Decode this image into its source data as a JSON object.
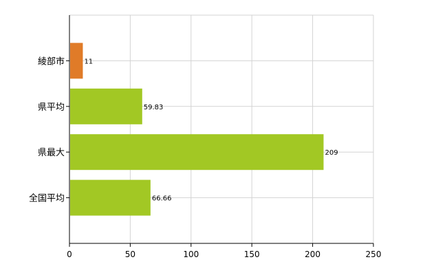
{
  "chart_data": {
    "type": "bar",
    "orientation": "horizontal",
    "categories": [
      "綾部市",
      "県平均",
      "県最大",
      "全国平均"
    ],
    "values": [
      11,
      59.83,
      209,
      66.66
    ],
    "value_labels": [
      "11",
      "59.83",
      "209",
      "66.66"
    ],
    "bar_colors": [
      "#e07b28",
      "#a2c824",
      "#a2c824",
      "#a2c824"
    ],
    "xlim": [
      0,
      250
    ],
    "xticks": [
      0,
      50,
      100,
      150,
      200,
      250
    ],
    "xtick_labels": [
      "0",
      "50",
      "100",
      "150",
      "200",
      "250"
    ],
    "grid": true,
    "legend": "none"
  }
}
